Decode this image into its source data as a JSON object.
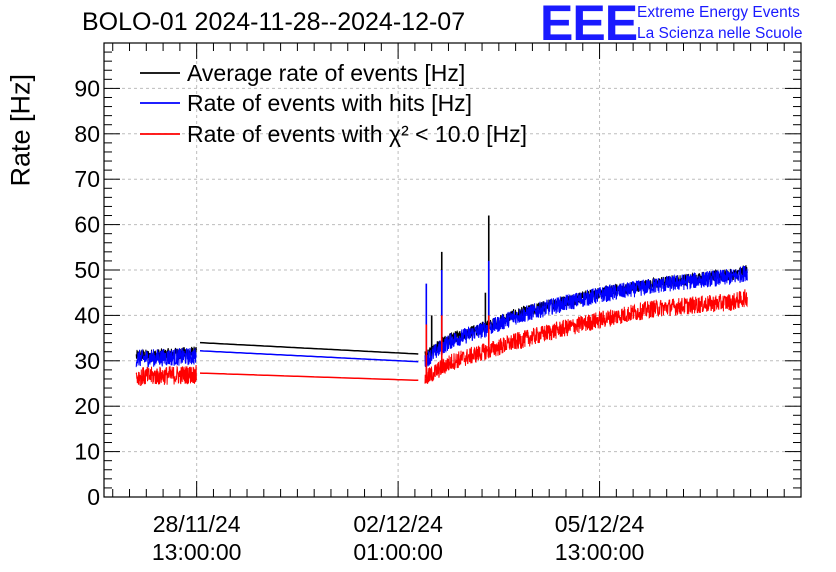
{
  "header": {
    "title": "BOLO-01 2024-11-28--2024-12-07",
    "logo_text": "EEE",
    "org_line1": "Extreme Energy Events",
    "org_line2": "La Scienza nelle Scuole"
  },
  "chart_data": {
    "type": "line",
    "title": "BOLO-01 2024-11-28--2024-12-07",
    "xlabel": "",
    "ylabel": "Rate [Hz]",
    "ylim": [
      0,
      100
    ],
    "xlim_days": [
      -1.38,
      9.0
    ],
    "y_ticks": [
      0,
      10,
      20,
      30,
      40,
      50,
      60,
      70,
      80,
      90
    ],
    "x_ticks": [
      {
        "date": "28/11/24",
        "time": "13:00:00",
        "day": 0
      },
      {
        "date": "02/12/24",
        "time": "01:00:00",
        "day": 3
      },
      {
        "date": "05/12/24",
        "time": "13:00:00",
        "day": 6
      }
    ],
    "grid": true,
    "legend_position": "top-left",
    "series": [
      {
        "name": "Average rate of events [Hz]",
        "color": "#000000",
        "x": [
          -0.9,
          0.0,
          0.05,
          3.3,
          3.4,
          3.6,
          3.8,
          4.4,
          4.7,
          5.3,
          6.0,
          6.8,
          7.6,
          8.0,
          8.2
        ],
        "y": [
          31.0,
          31.8,
          34.0,
          31.5,
          30.8,
          33.5,
          35.0,
          38.0,
          40.0,
          42.5,
          45.0,
          47.0,
          48.5,
          49.0,
          50.0
        ],
        "noise": 1.0,
        "spikes": [
          {
            "x": 3.65,
            "y": 54
          },
          {
            "x": 3.5,
            "y": 40
          },
          {
            "x": 4.35,
            "y": 62
          },
          {
            "x": 4.3,
            "y": 45
          }
        ]
      },
      {
        "name": "Rate of events with hits [Hz]",
        "color": "#0000ff",
        "x": [
          -0.9,
          0.0,
          0.05,
          3.3,
          3.4,
          3.6,
          3.8,
          4.4,
          4.7,
          5.3,
          6.0,
          6.8,
          7.6,
          8.0,
          8.2
        ],
        "y": [
          30.5,
          31.0,
          32.2,
          29.8,
          30.0,
          32.5,
          34.5,
          37.5,
          39.5,
          42.0,
          44.5,
          46.5,
          48.0,
          48.5,
          49.5
        ],
        "noise": 1.4,
        "spikes": [
          {
            "x": 3.42,
            "y": 47
          },
          {
            "x": 3.65,
            "y": 50
          },
          {
            "x": 4.35,
            "y": 52
          }
        ]
      },
      {
        "name": "Rate of events with χ² < 10.0 [Hz]",
        "color": "#ff0000",
        "x": [
          -0.9,
          0.0,
          0.05,
          3.3,
          3.4,
          3.6,
          3.8,
          4.4,
          4.7,
          5.3,
          6.0,
          6.8,
          7.6,
          8.0,
          8.2
        ],
        "y": [
          26.5,
          27.0,
          27.3,
          25.7,
          26.0,
          28.0,
          29.8,
          32.5,
          34.0,
          36.5,
          39.0,
          41.5,
          42.5,
          43.0,
          44.0
        ],
        "noise": 1.5,
        "spikes": [
          {
            "x": 3.42,
            "y": 38
          },
          {
            "x": 3.65,
            "y": 40
          },
          {
            "x": 4.35,
            "y": 40
          }
        ]
      }
    ]
  },
  "legend": {
    "item1_label": "Average rate of events [Hz]",
    "item2_label": "Rate of events with hits [Hz]",
    "item3_label": "Rate of events with χ² < 10.0 [Hz]"
  }
}
